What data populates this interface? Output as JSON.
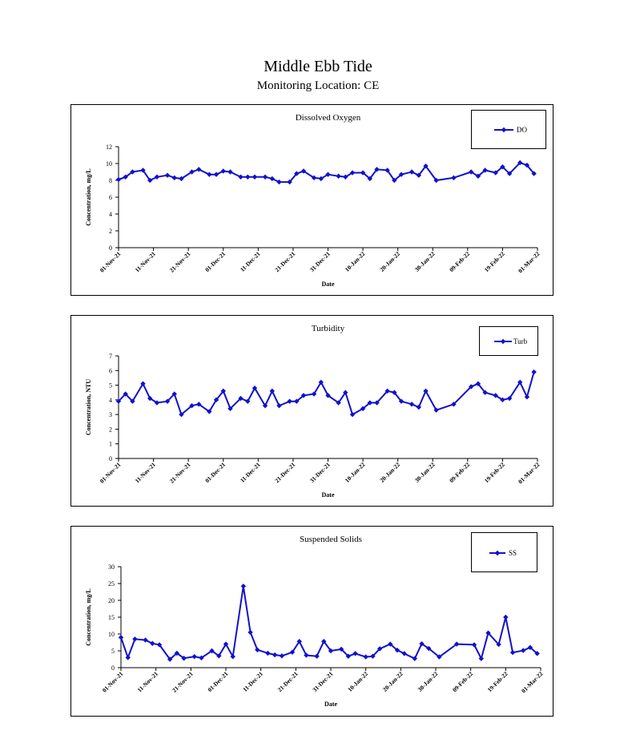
{
  "page": {
    "title": "Middle Ebb Tide",
    "subtitle": "Monitoring Location: CE"
  },
  "colors": {
    "series": "#1111cc",
    "axis": "#000000"
  },
  "chart_data": [
    {
      "type": "line",
      "title": "Dissolved Oxygen",
      "xlabel": "Date",
      "ylabel": "Concentration, mg/L",
      "ylim": [
        0,
        12
      ],
      "yticks": [
        0,
        2,
        4,
        6,
        8,
        10,
        12
      ],
      "x_ticks": [
        "01-Nov-21",
        "11-Nov-21",
        "21-Nov-21",
        "01-Dec-21",
        "11-Dec-21",
        "21-Dec-21",
        "31-Dec-21",
        "10-Jan-22",
        "20-Jan-22",
        "30-Jan-22",
        "09-Feb-22",
        "19-Feb-22",
        "01-Mar-22"
      ],
      "xlim": [
        "2021-11-01",
        "2022-03-01"
      ],
      "grid": false,
      "legend_position": "top-right",
      "series": [
        {
          "name": "DO",
          "points": [
            [
              "2021-11-01",
              8.1
            ],
            [
              "2021-11-03",
              8.4
            ],
            [
              "2021-11-05",
              9.0
            ],
            [
              "2021-11-08",
              9.2
            ],
            [
              "2021-11-10",
              8.0
            ],
            [
              "2021-11-12",
              8.4
            ],
            [
              "2021-11-15",
              8.6
            ],
            [
              "2021-11-17",
              8.3
            ],
            [
              "2021-11-19",
              8.2
            ],
            [
              "2021-11-22",
              9.0
            ],
            [
              "2021-11-24",
              9.3
            ],
            [
              "2021-11-27",
              8.7
            ],
            [
              "2021-11-29",
              8.7
            ],
            [
              "2021-12-01",
              9.1
            ],
            [
              "2021-12-03",
              9.0
            ],
            [
              "2021-12-06",
              8.4
            ],
            [
              "2021-12-08",
              8.4
            ],
            [
              "2021-12-10",
              8.4
            ],
            [
              "2021-12-13",
              8.4
            ],
            [
              "2021-12-15",
              8.2
            ],
            [
              "2021-12-17",
              7.8
            ],
            [
              "2021-12-20",
              7.8
            ],
            [
              "2021-12-22",
              8.8
            ],
            [
              "2021-12-24",
              9.1
            ],
            [
              "2021-12-27",
              8.3
            ],
            [
              "2021-12-29",
              8.2
            ],
            [
              "2021-12-31",
              8.7
            ],
            [
              "2022-01-03",
              8.5
            ],
            [
              "2022-01-05",
              8.4
            ],
            [
              "2022-01-07",
              8.9
            ],
            [
              "2022-01-10",
              8.9
            ],
            [
              "2022-01-12",
              8.2
            ],
            [
              "2022-01-14",
              9.3
            ],
            [
              "2022-01-17",
              9.2
            ],
            [
              "2022-01-19",
              8.0
            ],
            [
              "2022-01-21",
              8.7
            ],
            [
              "2022-01-24",
              9.0
            ],
            [
              "2022-01-26",
              8.6
            ],
            [
              "2022-01-28",
              9.7
            ],
            [
              "2022-01-31",
              8.0
            ],
            [
              "2022-02-05",
              8.3
            ],
            [
              "2022-02-10",
              9.0
            ],
            [
              "2022-02-12",
              8.5
            ],
            [
              "2022-02-14",
              9.2
            ],
            [
              "2022-02-17",
              8.9
            ],
            [
              "2022-02-19",
              9.6
            ],
            [
              "2022-02-21",
              8.8
            ],
            [
              "2022-02-24",
              10.1
            ],
            [
              "2022-02-26",
              9.8
            ],
            [
              "2022-02-28",
              8.8
            ]
          ]
        }
      ]
    },
    {
      "type": "line",
      "title": "Turbidity",
      "xlabel": "Date",
      "ylabel": "Concentration, NTU",
      "ylim": [
        0,
        7
      ],
      "yticks": [
        0,
        1,
        2,
        3,
        4,
        5,
        6,
        7
      ],
      "x_ticks": [
        "01-Nov-21",
        "11-Nov-21",
        "21-Nov-21",
        "01-Dec-21",
        "11-Dec-21",
        "21-Dec-21",
        "31-Dec-21",
        "10-Jan-22",
        "20-Jan-22",
        "30-Jan-22",
        "09-Feb-22",
        "19-Feb-22",
        "01-Mar-22"
      ],
      "xlim": [
        "2021-11-01",
        "2022-03-01"
      ],
      "grid": false,
      "legend_position": "top-right",
      "series": [
        {
          "name": "Turb",
          "points": [
            [
              "2021-11-01",
              3.9
            ],
            [
              "2021-11-03",
              4.4
            ],
            [
              "2021-11-05",
              3.9
            ],
            [
              "2021-11-08",
              5.1
            ],
            [
              "2021-11-10",
              4.1
            ],
            [
              "2021-11-12",
              3.8
            ],
            [
              "2021-11-15",
              3.9
            ],
            [
              "2021-11-17",
              4.4
            ],
            [
              "2021-11-19",
              3.0
            ],
            [
              "2021-11-22",
              3.6
            ],
            [
              "2021-11-24",
              3.7
            ],
            [
              "2021-11-27",
              3.2
            ],
            [
              "2021-11-29",
              4.0
            ],
            [
              "2021-12-01",
              4.6
            ],
            [
              "2021-12-03",
              3.4
            ],
            [
              "2021-12-06",
              4.1
            ],
            [
              "2021-12-08",
              3.9
            ],
            [
              "2021-12-10",
              4.8
            ],
            [
              "2021-12-13",
              3.6
            ],
            [
              "2021-12-15",
              4.6
            ],
            [
              "2021-12-17",
              3.6
            ],
            [
              "2021-12-20",
              3.9
            ],
            [
              "2021-12-22",
              3.9
            ],
            [
              "2021-12-24",
              4.3
            ],
            [
              "2021-12-27",
              4.4
            ],
            [
              "2021-12-29",
              5.2
            ],
            [
              "2021-12-31",
              4.3
            ],
            [
              "2022-01-03",
              3.8
            ],
            [
              "2022-01-05",
              4.5
            ],
            [
              "2022-01-07",
              3.0
            ],
            [
              "2022-01-10",
              3.4
            ],
            [
              "2022-01-12",
              3.8
            ],
            [
              "2022-01-14",
              3.8
            ],
            [
              "2022-01-17",
              4.6
            ],
            [
              "2022-01-19",
              4.5
            ],
            [
              "2022-01-21",
              3.9
            ],
            [
              "2022-01-24",
              3.7
            ],
            [
              "2022-01-26",
              3.5
            ],
            [
              "2022-01-28",
              4.6
            ],
            [
              "2022-01-31",
              3.3
            ],
            [
              "2022-02-05",
              3.7
            ],
            [
              "2022-02-10",
              4.9
            ],
            [
              "2022-02-12",
              5.1
            ],
            [
              "2022-02-14",
              4.5
            ],
            [
              "2022-02-17",
              4.3
            ],
            [
              "2022-02-19",
              4.0
            ],
            [
              "2022-02-21",
              4.1
            ],
            [
              "2022-02-24",
              5.2
            ],
            [
              "2022-02-26",
              4.2
            ],
            [
              "2022-02-28",
              5.9
            ]
          ]
        }
      ]
    },
    {
      "type": "line",
      "title": "Suspended Solids",
      "xlabel": "Date",
      "ylabel": "Concentration, mg/L",
      "ylim": [
        0,
        30
      ],
      "yticks": [
        0,
        5,
        10,
        15,
        20,
        25,
        30
      ],
      "x_ticks": [
        "01-Nov-21",
        "11-Nov-21",
        "21-Nov-21",
        "01-Dec-21",
        "11-Dec-21",
        "21-Dec-21",
        "31-Dec-21",
        "10-Jan-22",
        "20-Jan-22",
        "30-Jan-22",
        "09-Feb-22",
        "19-Feb-22",
        "01-Mar-22"
      ],
      "xlim": [
        "2021-11-01",
        "2022-03-01"
      ],
      "grid": false,
      "legend_position": "top-right",
      "series": [
        {
          "name": "SS",
          "points": [
            [
              "2021-11-01",
              9.0
            ],
            [
              "2021-11-03",
              3.0
            ],
            [
              "2021-11-05",
              8.5
            ],
            [
              "2021-11-08",
              8.2
            ],
            [
              "2021-11-10",
              7.2
            ],
            [
              "2021-11-12",
              6.8
            ],
            [
              "2021-11-15",
              2.5
            ],
            [
              "2021-11-17",
              4.3
            ],
            [
              "2021-11-19",
              2.8
            ],
            [
              "2021-11-22",
              3.3
            ],
            [
              "2021-11-24",
              2.9
            ],
            [
              "2021-11-27",
              5.0
            ],
            [
              "2021-11-29",
              3.5
            ],
            [
              "2021-12-01",
              7.0
            ],
            [
              "2021-12-03",
              3.3
            ],
            [
              "2021-12-06",
              24.2
            ],
            [
              "2021-12-08",
              10.5
            ],
            [
              "2021-12-10",
              5.3
            ],
            [
              "2021-12-13",
              4.3
            ],
            [
              "2021-12-15",
              3.8
            ],
            [
              "2021-12-17",
              3.5
            ],
            [
              "2021-12-20",
              4.6
            ],
            [
              "2021-12-22",
              7.8
            ],
            [
              "2021-12-24",
              3.7
            ],
            [
              "2021-12-27",
              3.4
            ],
            [
              "2021-12-29",
              7.8
            ],
            [
              "2021-12-31",
              5.0
            ],
            [
              "2022-01-03",
              5.5
            ],
            [
              "2022-01-05",
              3.4
            ],
            [
              "2022-01-07",
              4.2
            ],
            [
              "2022-01-10",
              3.2
            ],
            [
              "2022-01-12",
              3.4
            ],
            [
              "2022-01-14",
              5.6
            ],
            [
              "2022-01-17",
              7.0
            ],
            [
              "2022-01-19",
              5.2
            ],
            [
              "2022-01-21",
              4.2
            ],
            [
              "2022-01-24",
              2.7
            ],
            [
              "2022-01-26",
              7.1
            ],
            [
              "2022-01-28",
              5.7
            ],
            [
              "2022-01-31",
              3.2
            ],
            [
              "2022-02-05",
              7.0
            ],
            [
              "2022-02-10",
              6.8
            ],
            [
              "2022-02-12",
              2.7
            ],
            [
              "2022-02-14",
              10.3
            ],
            [
              "2022-02-17",
              6.9
            ],
            [
              "2022-02-19",
              15.0
            ],
            [
              "2022-02-21",
              4.5
            ],
            [
              "2022-02-24",
              5.1
            ],
            [
              "2022-02-26",
              6.0
            ],
            [
              "2022-02-28",
              4.2
            ]
          ]
        }
      ]
    }
  ]
}
